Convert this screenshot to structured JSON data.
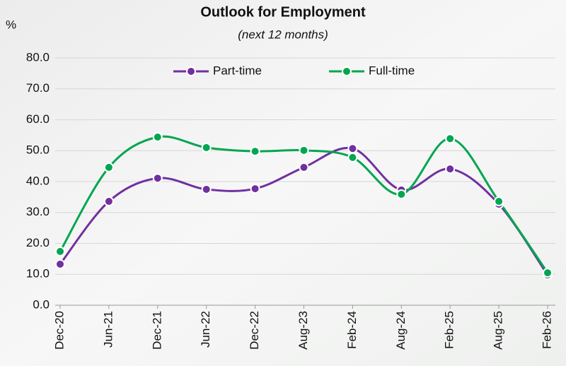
{
  "chart_data": {
    "type": "line",
    "title": "Outlook for Employment",
    "subtitle": "(next 12 months)",
    "y_unit_label": "%",
    "categories": [
      "Dec-20",
      "Jun-21",
      "Dec-21",
      "Jun-22",
      "Dec-22",
      "Aug-23",
      "Feb-24",
      "Aug-24",
      "Feb-25",
      "Aug-25",
      "Feb-26"
    ],
    "series": [
      {
        "name": "Part-time",
        "color": "#7030a0",
        "values": [
          13.3,
          33.6,
          41.1,
          37.5,
          37.7,
          44.6,
          50.7,
          37.3,
          44.1,
          32.7,
          9.8
        ]
      },
      {
        "name": "Full-time",
        "color": "#00a650",
        "values": [
          17.4,
          44.6,
          54.4,
          51.0,
          49.8,
          50.1,
          47.8,
          35.9,
          53.9,
          33.6,
          10.5
        ]
      }
    ],
    "ylim": [
      0,
      80
    ],
    "yticks": [
      {
        "value": 0,
        "label": "0.0"
      },
      {
        "value": 10,
        "label": "10.0"
      },
      {
        "value": 20,
        "label": "20.0"
      },
      {
        "value": 30,
        "label": "30.0"
      },
      {
        "value": 40,
        "label": "40.0"
      },
      {
        "value": 50,
        "label": "50.0"
      },
      {
        "value": 60,
        "label": "60.0"
      },
      {
        "value": 70,
        "label": "70.0"
      },
      {
        "value": 80,
        "label": "80.0"
      }
    ],
    "grid": true,
    "smooth": true
  }
}
